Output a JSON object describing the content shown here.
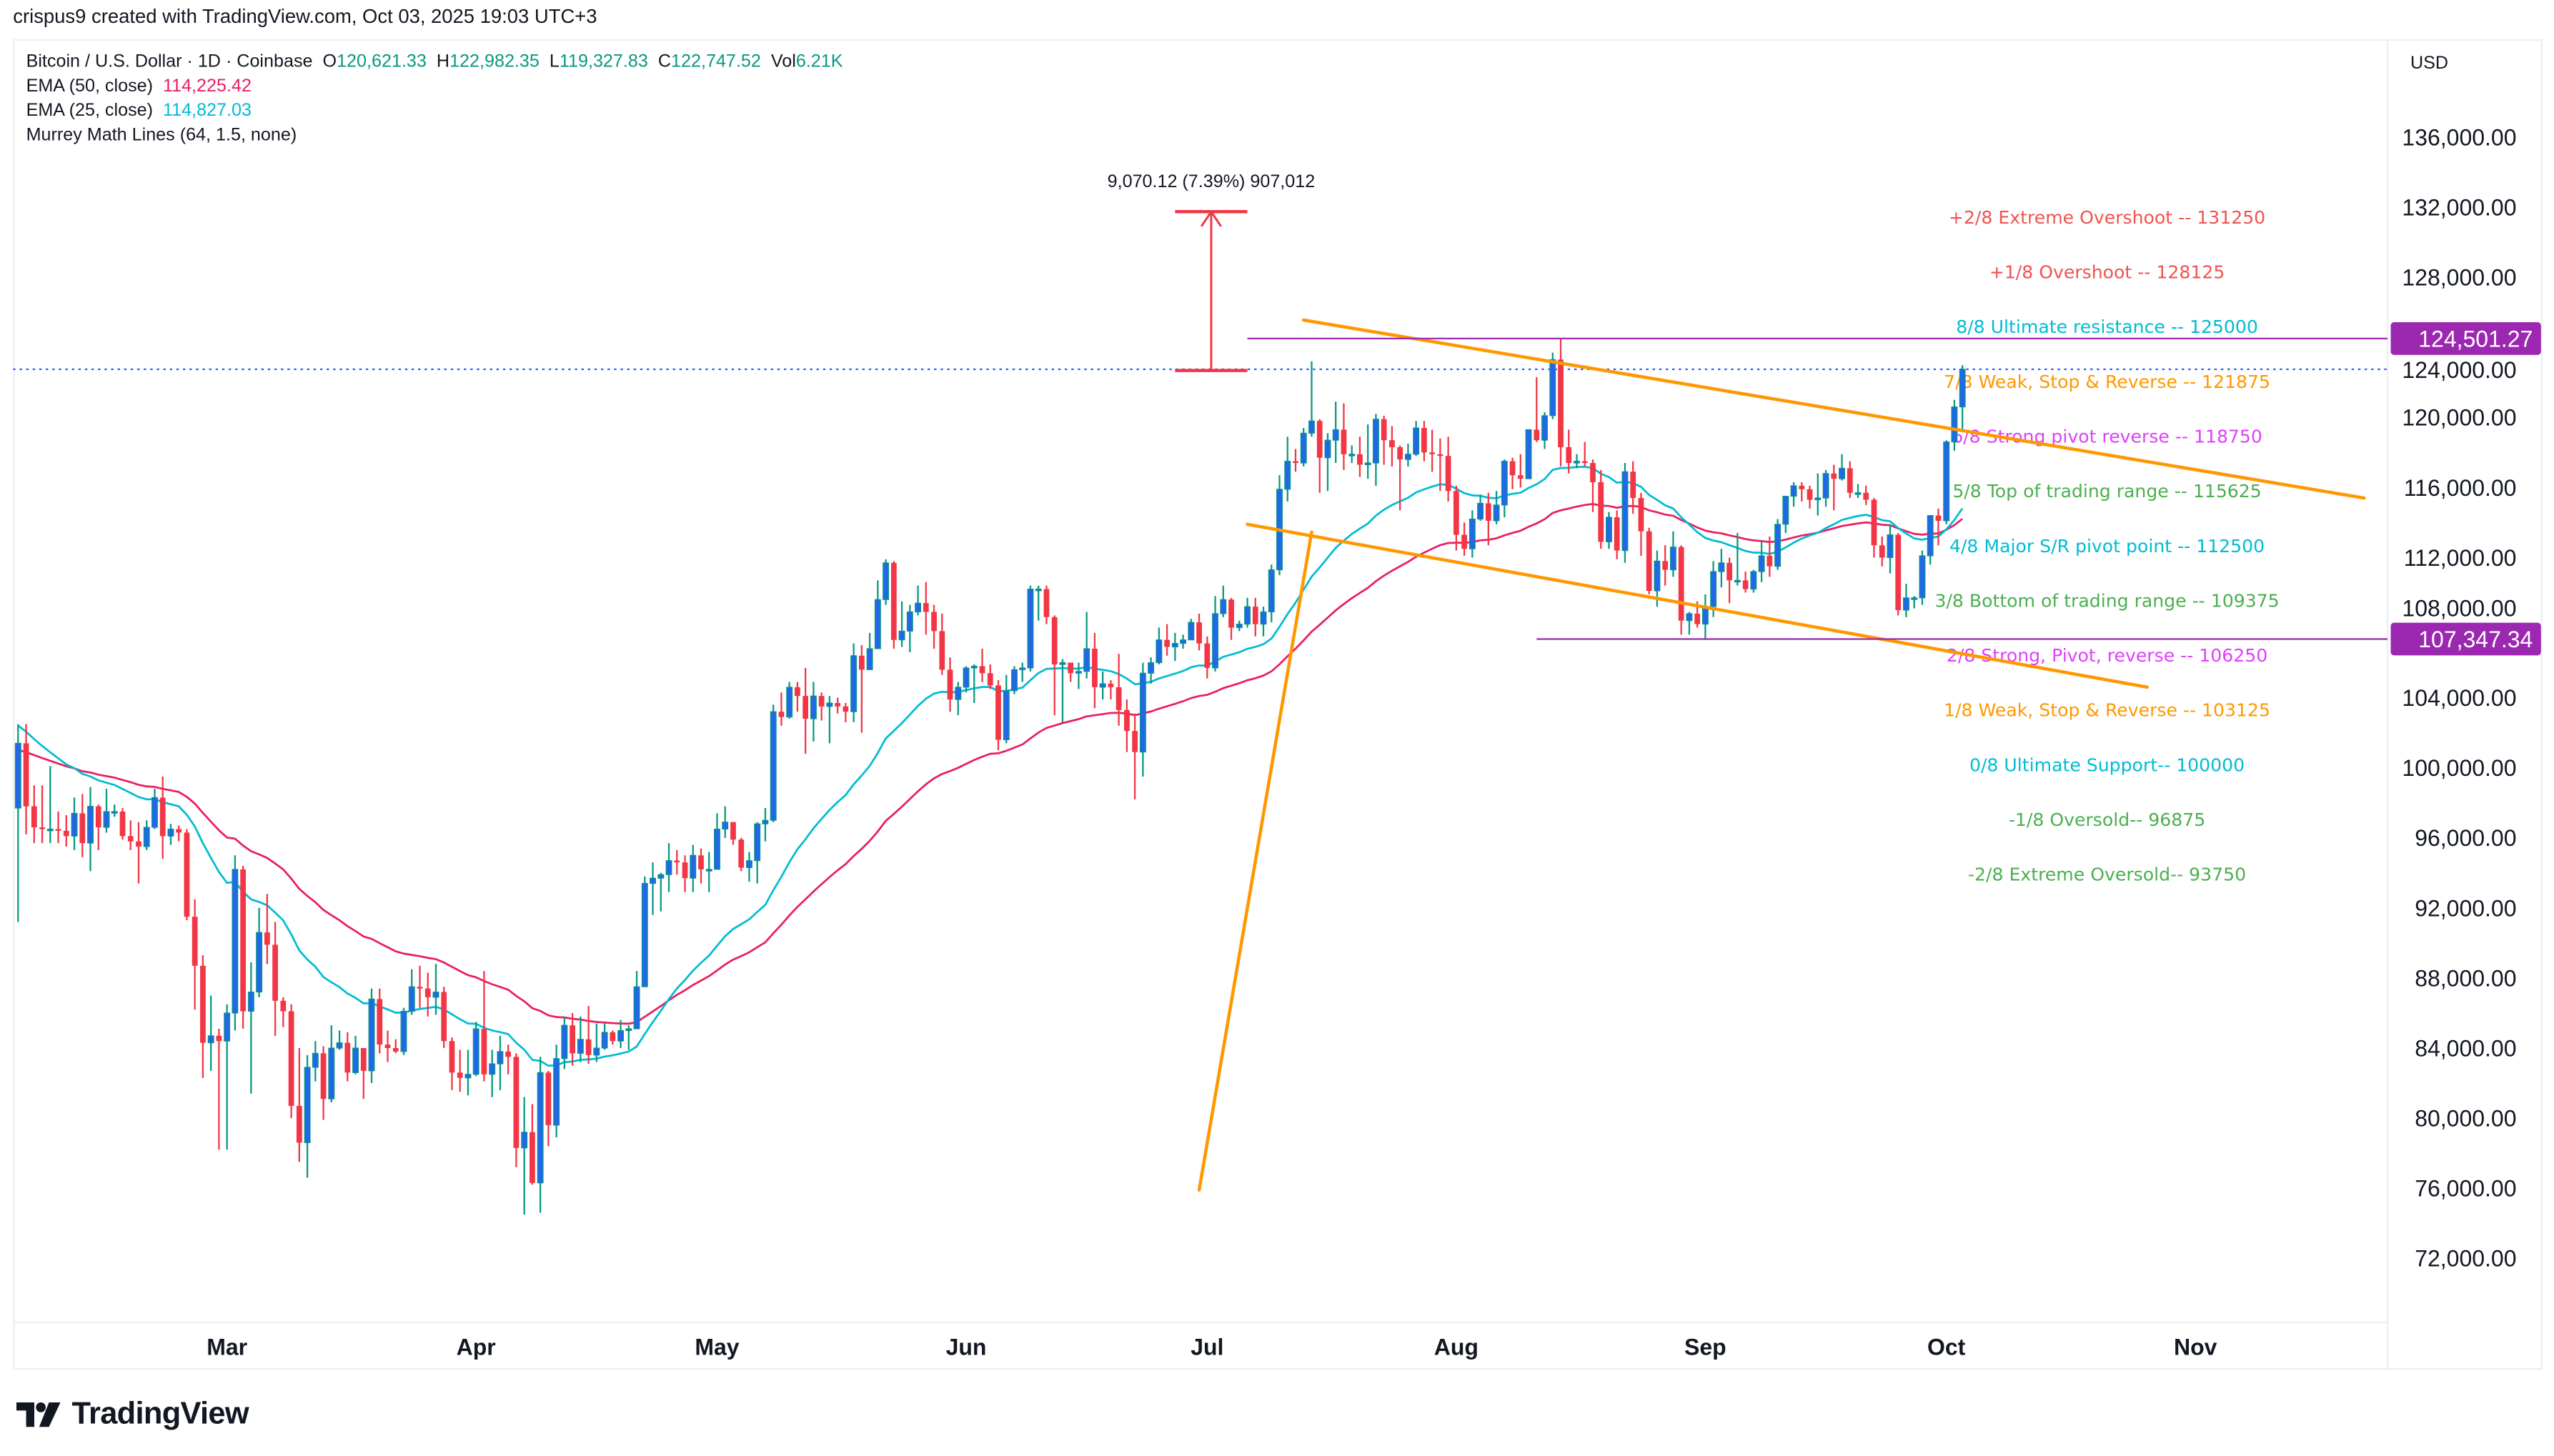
{
  "credit": "crispus9 created with TradingView.com, Oct 03, 2025 19:03 UTC+3",
  "legend": {
    "symbol": "Bitcoin / U.S. Dollar · 1D · Coinbase",
    "o_label": "O",
    "o": "120,621.33",
    "h_label": "H",
    "h": "122,982.35",
    "l_label": "L",
    "l": "119,327.83",
    "c_label": "C",
    "c": "122,747.52",
    "vol_label": "Vol",
    "vol": "6.21K",
    "ema50_label": "EMA (50, close)",
    "ema50": "114,225.42",
    "ema25_label": "EMA (25, close)",
    "ema25": "114,827.03",
    "murrey_label": "Murrey Math Lines (64, 1.5, none)"
  },
  "currency": "USD",
  "logo_text": "TradingView",
  "colors": {
    "up_body": "#2168E8",
    "up_wick": "#089981",
    "down": "#F23645",
    "ema50": "#E91E63",
    "ema25": "#00BCD4",
    "hline": "#9C27B0",
    "trend": "#FF9800",
    "measure": "#F23645",
    "last_price": "#2962FF"
  },
  "chart_data": {
    "type": "candlestick",
    "y_axis": {
      "ticks": [
        "72,000.00",
        "76,000.00",
        "80,000.00",
        "84,000.00",
        "88,000.00",
        "92,000.00",
        "96,000.00",
        "100,000.00",
        "104,000.00",
        "108,000.00",
        "112,000.00",
        "116,000.00",
        "120,000.00",
        "124,000.00",
        "128,000.00",
        "132,000.00",
        "136,000.00"
      ],
      "range": [
        70000,
        138000
      ]
    },
    "x_axis": {
      "ticks": [
        "Mar",
        "Apr",
        "May",
        "Jun",
        "Jul",
        "Aug",
        "Sep",
        "Oct",
        "Nov"
      ]
    },
    "first_open": 97.7,
    "unit": "thousand USD",
    "close": [
      101.4,
      97.8,
      96.6,
      96.5,
      96.5,
      96.4,
      96.1,
      97.4,
      95.7,
      97.8,
      96.6,
      97.5,
      97.5,
      96.1,
      95.8,
      95.5,
      96.6,
      98.3,
      96.1,
      96.5,
      96.3,
      91.5,
      88.7,
      84.3,
      84.7,
      84.4,
      86.0,
      94.2,
      86.1,
      87.2,
      90.6,
      89.9,
      86.7,
      86.1,
      80.7,
      78.6,
      82.9,
      83.7,
      81.1,
      84.0,
      84.3,
      82.6,
      84.0,
      82.7,
      86.8,
      84.2,
      84.0,
      83.8,
      86.1,
      87.5,
      87.4,
      86.9,
      87.2,
      84.4,
      82.6,
      82.3,
      82.5,
      85.1,
      82.5,
      83.1,
      83.8,
      83.5,
      78.3,
      79.2,
      76.3,
      82.6,
      79.6,
      83.4,
      85.3,
      83.7,
      84.5,
      83.6,
      84.0,
      84.9,
      84.4,
      85.0,
      85.1,
      87.5,
      93.4,
      93.7,
      93.9,
      94.7,
      94.6,
      93.7,
      95.0,
      94.2,
      94.2,
      96.5,
      96.9,
      95.9,
      94.3,
      94.7,
      96.8,
      97.0,
      103.2,
      102.9,
      104.6,
      104.1,
      102.8,
      104.1,
      103.5,
      103.7,
      103.5,
      103.2,
      106.4,
      105.6,
      106.8,
      109.6,
      111.7,
      107.3,
      107.8,
      108.9,
      109.4,
      108.9,
      107.8,
      105.6,
      103.9,
      104.6,
      105.7,
      105.8,
      105.4,
      104.7,
      101.6,
      104.4,
      105.6,
      105.7,
      110.2,
      110.2,
      108.6,
      105.9,
      106.0,
      105.4,
      105.5,
      106.8,
      104.6,
      104.8,
      104.6,
      103.3,
      102.1,
      100.9,
      105.4,
      106.0,
      107.3,
      106.9,
      107.1,
      107.3,
      108.3,
      107.1,
      105.7,
      108.8,
      109.6,
      108.0,
      108.2,
      109.2,
      108.2,
      108.9,
      111.3,
      115.9,
      117.5,
      117.4,
      119.1,
      119.8,
      117.7,
      118.7,
      119.3,
      117.9,
      117.9,
      117.3,
      117.4,
      119.9,
      118.7,
      118.3,
      117.6,
      117.9,
      119.4,
      118.0,
      117.9,
      117.8,
      115.8,
      113.3,
      112.5,
      114.2,
      115.1,
      114.1,
      115.0,
      117.5,
      116.7,
      116.5,
      119.3,
      118.7,
      120.1,
      123.3,
      118.3,
      117.4,
      117.5,
      117.4,
      116.3,
      112.9,
      114.3,
      112.4,
      116.9,
      115.4,
      113.5,
      110.1,
      111.8,
      111.3,
      112.6,
      108.4,
      108.8,
      108.2,
      109.2,
      111.2,
      111.7,
      110.7,
      110.7,
      110.2,
      111.2,
      112.1,
      111.5,
      113.9,
      115.5,
      116.1,
      115.9,
      115.3,
      115.4,
      116.8,
      116.5,
      117.1,
      115.7,
      115.7,
      115.3,
      112.7,
      112.0,
      113.3,
      109.0,
      109.7,
      109.7,
      112.1,
      114.4,
      114.1,
      118.6,
      120.6,
      122.75
    ],
    "high": [
      102.5,
      102.5,
      99.0,
      99.0,
      100.1,
      97.5,
      97.3,
      98.3,
      98.5,
      98.9,
      97.9,
      98.8,
      97.9,
      97.7,
      97.0,
      96.9,
      97.0,
      98.8,
      99.5,
      96.8,
      96.7,
      96.5,
      92.5,
      89.3,
      87.0,
      85.1,
      86.5,
      95.0,
      94.4,
      88.9,
      92.0,
      92.8,
      91.2,
      86.9,
      86.5,
      84.0,
      83.6,
      84.4,
      84.1,
      85.3,
      85.0,
      84.9,
      84.7,
      84.0,
      87.4,
      87.4,
      85.0,
      84.5,
      86.3,
      88.5,
      88.7,
      88.3,
      88.8,
      87.5,
      84.6,
      83.9,
      83.9,
      85.5,
      88.4,
      83.9,
      84.7,
      84.2,
      83.7,
      81.2,
      80.8,
      83.5,
      82.7,
      84.2,
      85.8,
      86.0,
      85.8,
      86.4,
      85.4,
      85.4,
      85.0,
      85.6,
      85.3,
      88.4,
      93.8,
      94.6,
      94.0,
      95.7,
      95.3,
      95.0,
      95.6,
      95.4,
      95.2,
      97.4,
      97.8,
      96.9,
      96.0,
      95.2,
      96.9,
      97.7,
      103.6,
      104.3,
      104.9,
      104.9,
      105.7,
      104.9,
      104.3,
      104.1,
      104.0,
      103.7,
      107.1,
      107.0,
      107.7,
      110.7,
      111.9,
      111.8,
      109.5,
      109.3,
      110.4,
      110.6,
      109.3,
      108.8,
      106.3,
      104.9,
      105.8,
      105.9,
      106.8,
      105.9,
      105.0,
      105.3,
      105.8,
      106.0,
      110.4,
      110.4,
      110.4,
      108.7,
      106.2,
      106.0,
      106.0,
      108.9,
      107.7,
      105.5,
      105.0,
      106.5,
      103.9,
      103.1,
      106.0,
      106.3,
      108.0,
      108.2,
      107.7,
      107.6,
      108.5,
      108.8,
      107.5,
      109.8,
      110.4,
      109.7,
      108.4,
      109.7,
      109.7,
      109.2,
      111.6,
      116.7,
      118.9,
      118.2,
      119.4,
      123.2,
      119.9,
      119.1,
      120.9,
      120.8,
      118.4,
      118.9,
      119.6,
      120.2,
      120.1,
      119.5,
      118.4,
      118.5,
      119.8,
      119.8,
      119.3,
      118.8,
      118.9,
      116.1,
      114.0,
      114.7,
      115.6,
      115.7,
      115.8,
      117.6,
      117.7,
      117.9,
      119.3,
      122.3,
      120.3,
      123.7,
      124.5,
      119.3,
      117.9,
      118.6,
      117.6,
      117.0,
      114.6,
      114.7,
      117.4,
      117.5,
      115.7,
      113.7,
      112.4,
      112.7,
      113.5,
      112.7,
      108.9,
      109.5,
      109.9,
      111.8,
      112.5,
      112.0,
      113.4,
      111.2,
      111.3,
      112.9,
      113.2,
      114.2,
      115.5,
      116.3,
      116.3,
      116.1,
      116.8,
      117.0,
      117.3,
      117.9,
      117.5,
      116.2,
      116.1,
      115.4,
      113.2,
      113.9,
      113.4,
      110.5,
      109.8,
      112.4,
      114.4,
      114.8,
      118.7,
      121.0,
      122.98
    ],
    "low": [
      91.2,
      96.2,
      95.7,
      95.7,
      95.7,
      95.7,
      95.5,
      95.3,
      94.9,
      94.1,
      95.3,
      96.3,
      97.2,
      95.9,
      95.3,
      93.4,
      95.3,
      96.5,
      94.8,
      95.6,
      95.8,
      91.3,
      86.2,
      82.3,
      82.7,
      78.2,
      78.2,
      85.0,
      85.1,
      81.4,
      86.9,
      88.8,
      84.7,
      85.2,
      80.0,
      77.5,
      76.6,
      82.1,
      79.9,
      80.9,
      83.9,
      82.1,
      82.5,
      81.1,
      82.0,
      83.7,
      83.2,
      83.7,
      83.6,
      85.9,
      86.3,
      85.8,
      85.9,
      84.0,
      81.6,
      81.5,
      81.3,
      82.4,
      82.1,
      81.2,
      81.6,
      82.5,
      77.2,
      74.5,
      76.2,
      74.6,
      78.4,
      78.9,
      82.8,
      83.0,
      83.2,
      83.1,
      83.2,
      83.9,
      84.2,
      84.0,
      83.9,
      85.1,
      87.5,
      91.6,
      91.8,
      92.9,
      93.9,
      92.9,
      92.9,
      93.4,
      92.9,
      94.2,
      96.0,
      95.6,
      94.1,
      93.5,
      93.4,
      95.8,
      96.9,
      102.4,
      102.8,
      103.2,
      100.8,
      101.5,
      102.7,
      101.4,
      103.1,
      102.6,
      102.6,
      102.0,
      105.6,
      106.8,
      109.3,
      106.8,
      106.9,
      106.6,
      108.7,
      107.6,
      106.8,
      105.3,
      103.2,
      103.0,
      104.3,
      103.7,
      104.9,
      104.5,
      101.0,
      101.4,
      104.2,
      104.9,
      105.5,
      108.4,
      108.2,
      103.0,
      102.6,
      104.9,
      104.5,
      105.1,
      103.4,
      103.9,
      103.9,
      102.4,
      100.9,
      98.2,
      99.5,
      104.8,
      105.9,
      106.4,
      106.1,
      106.8,
      107.3,
      106.7,
      105.1,
      105.5,
      108.6,
      107.3,
      107.8,
      108.0,
      107.5,
      107.5,
      108.3,
      111.0,
      115.2,
      116.9,
      117.2,
      118.9,
      115.7,
      115.8,
      117.4,
      117.0,
      117.4,
      116.6,
      116.5,
      116.1,
      117.3,
      117.2,
      114.7,
      117.2,
      117.8,
      117.5,
      116.9,
      115.8,
      115.2,
      112.4,
      112.1,
      112.0,
      114.1,
      112.7,
      113.9,
      114.3,
      115.9,
      116.0,
      116.5,
      118.6,
      118.2,
      119.9,
      117.2,
      116.8,
      117.1,
      117.2,
      114.6,
      112.5,
      112.5,
      111.9,
      111.7,
      114.5,
      112.1,
      109.9,
      109.2,
      110.4,
      110.9,
      107.6,
      107.6,
      108.0,
      107.3,
      108.6,
      110.3,
      109.4,
      110.4,
      110.0,
      110.0,
      110.6,
      110.9,
      111.3,
      113.4,
      114.9,
      115.2,
      114.8,
      114.4,
      114.9,
      114.7,
      116.4,
      115.4,
      115.4,
      115.0,
      112.0,
      111.5,
      111.1,
      108.7,
      108.6,
      109.1,
      109.3,
      111.6,
      112.7,
      113.9,
      118.1,
      119.33
    ],
    "last_price": 122747.52,
    "price_labels": [
      {
        "value": 124501.27,
        "text": "124,501.27",
        "start": "2025-07-06"
      },
      {
        "value": 107347.34,
        "text": "107,347.34",
        "start": "2025-08-11"
      }
    ],
    "trend_lines": [
      {
        "from": [
          "2025-07-13",
          125560
        ],
        "to": [
          "2025-11-22",
          115400
        ]
      },
      {
        "from": [
          "2025-07-06",
          113900
        ],
        "to": [
          "2025-10-26",
          104600
        ]
      },
      {
        "from": [
          "2025-06-30",
          75900
        ],
        "to": [
          "2025-07-14",
          113450
        ]
      }
    ],
    "measure": {
      "from": [
        "2025-06-27",
        122677
      ],
      "to": [
        "2025-07-06",
        131747
      ],
      "label": "9,070.12 (7.39%) 907,012"
    },
    "murrey_levels": [
      {
        "value": 131250,
        "text": "+2/8 Extreme Overshoot --  131250",
        "color": "#F05350"
      },
      {
        "value": 128125,
        "text": "+1/8 Overshoot --  128125",
        "color": "#F05350"
      },
      {
        "value": 125000,
        "text": "8/8 Ultimate resistance --  125000",
        "color": "#00BCD4"
      },
      {
        "value": 121875,
        "text": "7/8 Weak, Stop & Reverse --  121875",
        "color": "#FF9800"
      },
      {
        "value": 118750,
        "text": "6/8 Strong pivot reverse --  118750",
        "color": "#E040FB"
      },
      {
        "value": 115625,
        "text": "5/8 Top of trading range --  115625",
        "color": "#4CAF50"
      },
      {
        "value": 112500,
        "text": "4/8 Major S/R pivot point --  112500",
        "color": "#00BCD4"
      },
      {
        "value": 109375,
        "text": "3/8 Bottom of trading range --  109375",
        "color": "#4CAF50"
      },
      {
        "value": 106250,
        "text": "2/8 Strong, Pivot, reverse --  106250",
        "color": "#E040FB"
      },
      {
        "value": 103125,
        "text": "1/8 Weak, Stop & Reverse --  103125",
        "color": "#FF9800"
      },
      {
        "value": 100000,
        "text": "0/8 Ultimate Support--  100000",
        "color": "#00BCD4"
      },
      {
        "value": 96875,
        "text": "-1/8 Oversold--  96875",
        "color": "#4CAF50"
      },
      {
        "value": 93750,
        "text": "-2/8 Extreme Oversold--  93750",
        "color": "#4CAF50"
      }
    ]
  }
}
